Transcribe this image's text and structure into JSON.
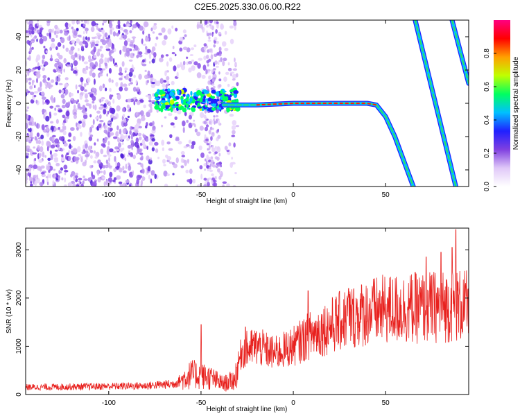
{
  "title": "C2E5.2025.330.06.00.R22",
  "chart_data": [
    {
      "type": "heatmap",
      "name": "spectrogram",
      "xlabel": "Height of straight line (km)",
      "ylabel": "Frequency (Hz)",
      "xlim": [
        -145,
        95
      ],
      "ylim": [
        -50,
        50
      ],
      "xticks": [
        -100,
        -50,
        0,
        50
      ],
      "yticks": [
        -40,
        -20,
        0,
        20,
        40
      ],
      "colorbar": {
        "label": "Normalized spectral amplitude",
        "range": [
          0,
          1
        ],
        "ticks": [
          0.0,
          0.2,
          0.4,
          0.6,
          0.8
        ],
        "colors": [
          "#ffffff",
          "#e0c8f8",
          "#8040e0",
          "#2020ff",
          "#00c0ff",
          "#00ff60",
          "#c0ff00",
          "#ffa000",
          "#ff0000",
          "#ff0080"
        ]
      },
      "noise_region_x": [
        -145,
        -40
      ],
      "main_ridge": [
        {
          "x": -75,
          "y": 4
        },
        {
          "x": -60,
          "y": 1
        },
        {
          "x": -45,
          "y": 2
        },
        {
          "x": -38,
          "y": -1
        },
        {
          "x": -20,
          "y": -1
        },
        {
          "x": 0,
          "y": 0
        },
        {
          "x": 20,
          "y": 0
        },
        {
          "x": 40,
          "y": 0
        },
        {
          "x": 45,
          "y": -1
        },
        {
          "x": 50,
          "y": -8
        },
        {
          "x": 55,
          "y": -20
        },
        {
          "x": 60,
          "y": -35
        },
        {
          "x": 65,
          "y": -50
        }
      ],
      "side_ridges": [
        [
          {
            "x": 66,
            "y": 50
          },
          {
            "x": 88,
            "y": -50
          }
        ],
        [
          {
            "x": 86,
            "y": 50
          },
          {
            "x": 95,
            "y": 12
          }
        ]
      ]
    },
    {
      "type": "line",
      "name": "snr",
      "xlabel": "Height of straight line (km)",
      "ylabel": "SNR (10 * v/v)",
      "xlim": [
        -145,
        95
      ],
      "ylim": [
        0,
        3450
      ],
      "xticks": [
        -100,
        -50,
        0,
        50
      ],
      "yticks": [
        0,
        1000,
        2000,
        3000
      ],
      "color": "#e8211e",
      "envelope": [
        {
          "x": -145,
          "y": 150
        },
        {
          "x": -120,
          "y": 160
        },
        {
          "x": -100,
          "y": 170
        },
        {
          "x": -80,
          "y": 180
        },
        {
          "x": -65,
          "y": 220
        },
        {
          "x": -55,
          "y": 420
        },
        {
          "x": -45,
          "y": 350
        },
        {
          "x": -38,
          "y": 220
        },
        {
          "x": -32,
          "y": 300
        },
        {
          "x": -28,
          "y": 900
        },
        {
          "x": -20,
          "y": 1000
        },
        {
          "x": -10,
          "y": 850
        },
        {
          "x": 0,
          "y": 1000
        },
        {
          "x": 10,
          "y": 1250
        },
        {
          "x": 20,
          "y": 1420
        },
        {
          "x": 30,
          "y": 1600
        },
        {
          "x": 40,
          "y": 1700
        },
        {
          "x": 50,
          "y": 1760
        },
        {
          "x": 60,
          "y": 1780
        },
        {
          "x": 70,
          "y": 1800
        },
        {
          "x": 80,
          "y": 1820
        },
        {
          "x": 90,
          "y": 1850
        },
        {
          "x": 95,
          "y": 1800
        }
      ],
      "spikes": [
        {
          "x": -50,
          "y": 1450
        },
        {
          "x": -26,
          "y": 1400
        },
        {
          "x": 8,
          "y": 2150
        },
        {
          "x": 30,
          "y": 2200
        },
        {
          "x": 72,
          "y": 2850
        },
        {
          "x": 80,
          "y": 2950
        },
        {
          "x": 86,
          "y": 3050
        },
        {
          "x": 88,
          "y": 3420
        }
      ]
    }
  ]
}
